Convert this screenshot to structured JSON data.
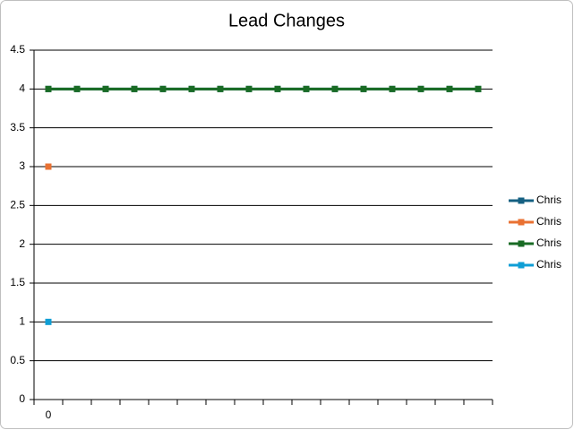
{
  "chart_data": {
    "type": "line",
    "title": "Lead Changes",
    "categories": [
      "0",
      null,
      null,
      null,
      null,
      null,
      null,
      null,
      null,
      null,
      null,
      null,
      null,
      null,
      null,
      null
    ],
    "series": [
      {
        "name": "Chris",
        "color": "#156082",
        "values": [
          4,
          4,
          4,
          4,
          4,
          4,
          4,
          4,
          4,
          4,
          4,
          4,
          4,
          4,
          4,
          4
        ]
      },
      {
        "name": "Chris",
        "color": "#e97132",
        "values": [
          3,
          null,
          null,
          null,
          null,
          null,
          null,
          null,
          null,
          null,
          null,
          null,
          null,
          null,
          null,
          null
        ]
      },
      {
        "name": "Chris",
        "color": "#196b24",
        "values": [
          4,
          4,
          4,
          4,
          4,
          4,
          4,
          4,
          4,
          4,
          4,
          4,
          4,
          4,
          4,
          4
        ]
      },
      {
        "name": "Chris",
        "color": "#0f9ed5",
        "values": [
          1,
          null,
          null,
          null,
          null,
          null,
          null,
          null,
          null,
          null,
          null,
          null,
          null,
          null,
          null,
          null
        ]
      }
    ],
    "ylim": [
      0,
      4.5
    ],
    "yticks": [
      0,
      0.5,
      1,
      1.5,
      2,
      2.5,
      3,
      3.5,
      4,
      4.5
    ],
    "grid": true,
    "legend": "right"
  }
}
